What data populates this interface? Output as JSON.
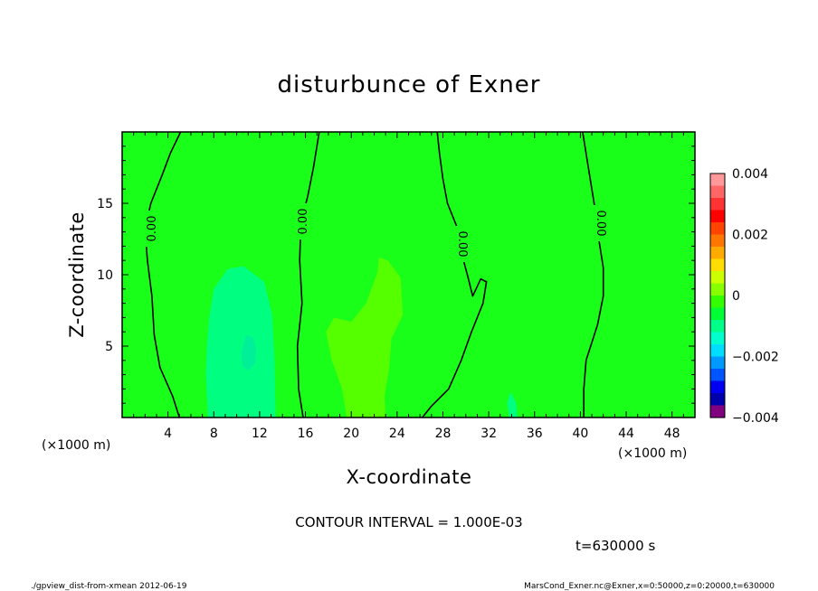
{
  "chart_data": {
    "type": "contour",
    "title": "disturbunce of Exner",
    "xlabel": "X-coordinate",
    "ylabel": "Z-coordinate",
    "x_unit": "(×1000 m)",
    "y_unit": "(×1000 m)",
    "xlim": [
      0,
      50
    ],
    "ylim": [
      0,
      20
    ],
    "x_ticks": [
      4,
      8,
      12,
      16,
      20,
      24,
      28,
      32,
      36,
      40,
      44,
      48
    ],
    "y_ticks": [
      5,
      10,
      15
    ],
    "contour_interval_text": "CONTOUR INTERVAL = 1.000E-03",
    "contour_labels": [
      "0.00",
      "0.00",
      "0.00",
      "0.00"
    ],
    "contours": [
      {
        "level": 0.0,
        "points": [
          [
            5.0,
            0
          ],
          [
            4.4,
            1.5
          ],
          [
            3.3,
            3.5
          ],
          [
            2.8,
            5.8
          ],
          [
            2.6,
            8.5
          ],
          [
            2.2,
            11
          ],
          [
            2.0,
            13.2
          ],
          [
            2.5,
            15
          ],
          [
            3.5,
            17
          ],
          [
            4.2,
            18.5
          ],
          [
            5.1,
            20
          ]
        ]
      },
      {
        "level": 0.0,
        "points": [
          [
            15.8,
            0
          ],
          [
            15.4,
            2
          ],
          [
            15.3,
            5
          ],
          [
            15.7,
            8
          ],
          [
            15.5,
            11
          ],
          [
            15.6,
            13.6
          ],
          [
            16.2,
            15.5
          ],
          [
            16.7,
            17.5
          ],
          [
            17.2,
            20
          ]
        ]
      },
      {
        "level": 0.0,
        "points": [
          [
            26.2,
            0
          ],
          [
            27.0,
            0.8
          ],
          [
            28.5,
            2
          ],
          [
            29.6,
            4
          ],
          [
            30.5,
            6
          ],
          [
            31.5,
            8
          ],
          [
            31.8,
            9.5
          ],
          [
            31.3,
            9.7
          ],
          [
            30.6,
            8.5
          ],
          [
            30.2,
            9.8
          ],
          [
            29.7,
            11.3
          ],
          [
            29.4,
            13
          ],
          [
            28.4,
            15
          ],
          [
            28.0,
            16.7
          ],
          [
            27.7,
            18.5
          ],
          [
            27.5,
            20
          ]
        ]
      },
      {
        "level": 0.0,
        "points": [
          [
            40.3,
            0
          ],
          [
            40.3,
            2
          ],
          [
            40.5,
            4
          ],
          [
            41.5,
            6.5
          ],
          [
            42.0,
            8.5
          ],
          [
            42.0,
            10.5
          ],
          [
            41.6,
            12.5
          ],
          [
            41.2,
            15
          ],
          [
            40.8,
            17
          ],
          [
            40.5,
            18.5
          ],
          [
            40.2,
            20
          ]
        ]
      }
    ],
    "filled_regions": [
      {
        "value": -0.001,
        "color": "#00ff80",
        "points": [
          [
            7.5,
            0
          ],
          [
            7.3,
            3
          ],
          [
            7.4,
            5
          ],
          [
            7.6,
            7
          ],
          [
            8.0,
            9
          ],
          [
            9.2,
            10.4
          ],
          [
            10.6,
            10.6
          ],
          [
            12.4,
            9.5
          ],
          [
            13.1,
            7.2
          ],
          [
            13.3,
            4
          ],
          [
            13.4,
            0
          ]
        ]
      },
      {
        "value": -0.0015,
        "color": "#00f09a",
        "points": [
          [
            10.4,
            4.5
          ],
          [
            10.5,
            3.6
          ],
          [
            11.0,
            3.3
          ],
          [
            11.6,
            3.8
          ],
          [
            11.7,
            4.9
          ],
          [
            11.4,
            5.6
          ],
          [
            10.8,
            5.8
          ]
        ]
      },
      {
        "value": 0.001,
        "color": "#55ff00",
        "points": [
          [
            19.6,
            0
          ],
          [
            19.2,
            2
          ],
          [
            18.3,
            4
          ],
          [
            17.8,
            6
          ],
          [
            18.5,
            7
          ],
          [
            20.0,
            6.7
          ],
          [
            21.3,
            8
          ],
          [
            22.3,
            10.2
          ],
          [
            22.4,
            11.2
          ],
          [
            23.2,
            11.0
          ],
          [
            24.3,
            9.8
          ],
          [
            24.5,
            7.2
          ],
          [
            23.5,
            5.5
          ],
          [
            23.3,
            3.4
          ],
          [
            22.9,
            1.5
          ],
          [
            23.0,
            0
          ]
        ]
      },
      {
        "value": -0.001,
        "color": "#00ff80",
        "points": [
          [
            33.8,
            0
          ],
          [
            33.6,
            1
          ],
          [
            33.9,
            1.8
          ],
          [
            34.4,
            1.0
          ],
          [
            34.5,
            0
          ]
        ]
      }
    ],
    "background_value": 0.0,
    "background_color": "#1aff1a",
    "colorbar": {
      "min": -0.004,
      "max": 0.004,
      "tick_values": [
        0.004,
        0.002,
        0,
        -0.002,
        -0.004
      ],
      "tick_labels": [
        "0.004",
        "0.002",
        "0",
        "−0.002",
        "−0.004"
      ],
      "colors_top_to_bottom": [
        "#ff9999",
        "#ff6666",
        "#ff3333",
        "#ff0000",
        "#ff4400",
        "#ff7700",
        "#ffaa00",
        "#ffdd00",
        "#ccff00",
        "#88ff00",
        "#33ff00",
        "#00ff33",
        "#00ff88",
        "#00ffcc",
        "#00ddff",
        "#0099ff",
        "#0055ff",
        "#0000ee",
        "#0000aa",
        "#800080"
      ]
    }
  },
  "footer": {
    "time_label": "t=630000 s",
    "script_name": "./gpview_dist-from-xmean  2012-06-19",
    "source_info": "MarsCond_Exner.nc@Exner,x=0:50000,z=0:20000,t=630000"
  }
}
